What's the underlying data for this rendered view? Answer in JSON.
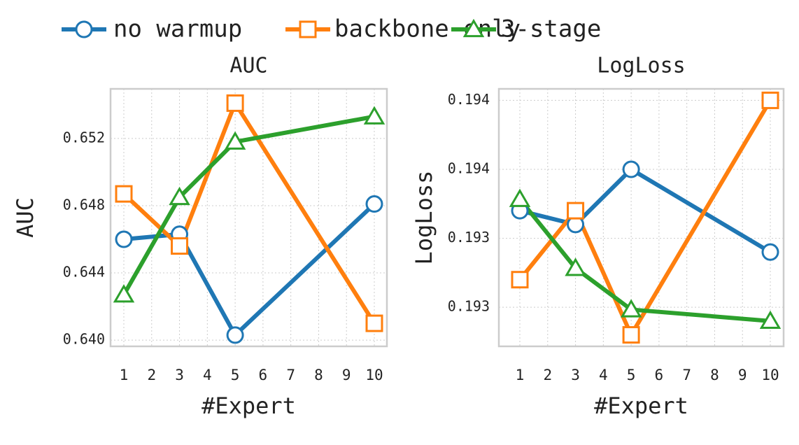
{
  "chart_data": [
    {
      "type": "line",
      "title": "AUC",
      "ylabel": "AUC",
      "xlabel": "#Expert",
      "categories": [
        "1",
        "2",
        "3",
        "4",
        "5",
        "6",
        "7",
        "8",
        "9",
        "10"
      ],
      "series": [
        {
          "name": "no warmup",
          "color": "#1f77b4",
          "marker": "circle",
          "x": [
            "1",
            "3",
            "5",
            "10"
          ],
          "values": [
            0.646,
            0.6463,
            0.6403,
            0.6481
          ]
        },
        {
          "name": "backbone only",
          "color": "#ff7f0e",
          "marker": "square",
          "x": [
            "1",
            "3",
            "5",
            "10"
          ],
          "values": [
            0.6487,
            0.6456,
            0.6541,
            0.641
          ]
        },
        {
          "name": "3-stage",
          "color": "#2ca02c",
          "marker": "triangle",
          "x": [
            "1",
            "3",
            "5",
            "10"
          ],
          "values": [
            0.6427,
            0.6485,
            0.6518,
            0.6533
          ]
        }
      ],
      "ylim": [
        0.63963,
        0.65495
      ],
      "yticks": [
        {
          "value": 0.64,
          "label": "0.640"
        },
        0.644,
        0.648,
        0.652
      ],
      "grid": true,
      "legend": "top"
    },
    {
      "type": "line",
      "title": "LogLoss",
      "ylabel": "LogLoss",
      "xlabel": "#Expert",
      "categories": [
        "1",
        "2",
        "3",
        "4",
        "5",
        "6",
        "7",
        "8",
        "9",
        "10"
      ],
      "series": [
        {
          "name": "no warmup",
          "color": "#1f77b4",
          "marker": "circle",
          "x": [
            "1",
            "3",
            "5",
            "10"
          ],
          "values": [
            0.19342,
            0.19336,
            0.1936,
            0.19324
          ]
        },
        {
          "name": "backbone only",
          "color": "#ff7f0e",
          "marker": "square",
          "x": [
            "1",
            "3",
            "5",
            "10"
          ],
          "values": [
            0.19312,
            0.19342,
            0.19288,
            0.1939
          ]
        },
        {
          "name": "3-stage",
          "color": "#2ca02c",
          "marker": "triangle",
          "x": [
            "1",
            "3",
            "5",
            "10"
          ],
          "values": [
            0.19347,
            0.19317,
            0.19299,
            0.19294
          ]
        }
      ],
      "ylim": [
        0.19283,
        0.19395
      ],
      "yticks": [
        {
          "value": 0.193,
          "label": "0.193"
        },
        {
          "value": 0.1933,
          "label": "0.193"
        },
        {
          "value": 0.1936,
          "label": "0.194"
        },
        {
          "value": 0.1939,
          "label": "0.194"
        }
      ],
      "grid": true
    }
  ]
}
